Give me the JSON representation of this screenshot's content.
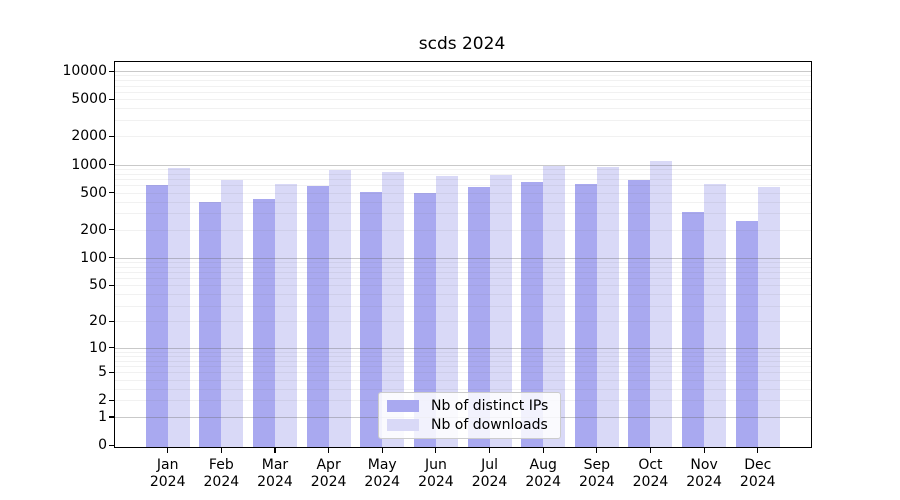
{
  "title": "scds 2024",
  "colors": {
    "distinct_ips_bar": "#a9a9f0",
    "downloads_bar": "#d9d9f7",
    "major_gridline": "#c4c4c4",
    "minor_gridline": "#ececec",
    "axis": "#000000",
    "background": "#ffffff"
  },
  "legend": {
    "position": "lower center",
    "items": [
      {
        "label": "Nb of distinct IPs",
        "swatch_color": "#a9a9f0"
      },
      {
        "label": "Nb of downloads",
        "swatch_color": "#d9d9f7"
      }
    ]
  },
  "chart_data": {
    "type": "bar",
    "title": "scds 2024",
    "categories": [
      "Jan",
      "Feb",
      "Mar",
      "Apr",
      "May",
      "Jun",
      "Jul",
      "Aug",
      "Sep",
      "Oct",
      "Nov",
      "Dec"
    ],
    "category_year": "2024",
    "series": [
      {
        "name": "Nb of distinct IPs",
        "color": "#a9a9f0",
        "values": [
          600,
          395,
          430,
          590,
          510,
          500,
          570,
          650,
          615,
          690,
          310,
          250
        ]
      },
      {
        "name": "Nb of downloads",
        "color": "#d9d9f7",
        "values": [
          910,
          690,
          620,
          870,
          830,
          760,
          780,
          975,
          940,
          1080,
          615,
          580
        ]
      }
    ],
    "yscale": "log10(value+1)",
    "yticks": [
      0,
      1,
      2,
      5,
      10,
      20,
      50,
      100,
      200,
      500,
      1000,
      2000,
      5000,
      10000
    ],
    "major_grid_values": [
      1,
      10,
      100,
      1000,
      10000
    ],
    "ylim": [
      0,
      12500
    ],
    "xlabel": "",
    "ylabel": "",
    "grid": "horizontal",
    "legend_position": "lower center"
  }
}
